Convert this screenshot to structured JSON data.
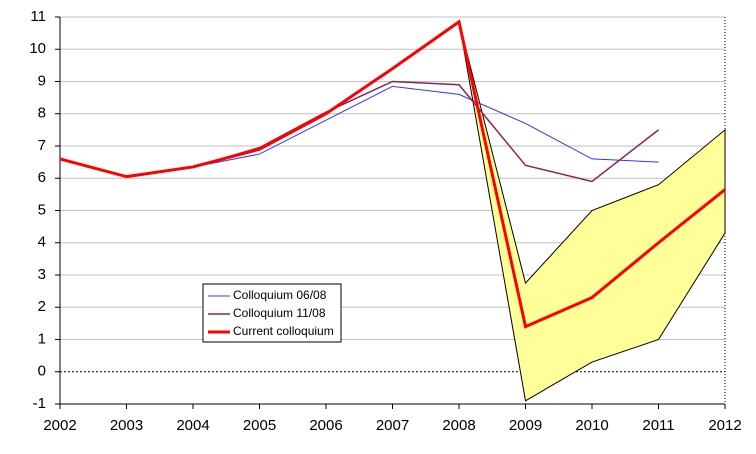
{
  "chart_data": {
    "type": "line",
    "categories": [
      "2002",
      "2003",
      "2004",
      "2005",
      "2006",
      "2007",
      "2008",
      "2009",
      "2010",
      "2011",
      "2012"
    ],
    "series": [
      {
        "name": "Colloquium 06/08",
        "color": "#3333ff",
        "width": 1,
        "values": [
          6.6,
          6.05,
          6.35,
          6.75,
          7.8,
          8.85,
          8.6,
          7.7,
          6.6,
          6.5,
          null
        ]
      },
      {
        "name": "Colloquium 11/08",
        "color": "#8b2252",
        "width": 1.5,
        "values": [
          6.6,
          6.05,
          6.35,
          6.95,
          8.05,
          9.0,
          8.9,
          6.4,
          5.9,
          7.5,
          null
        ]
      },
      {
        "name": "Current colloquium",
        "color": "#ff0000",
        "width": 3,
        "values": [
          6.6,
          6.05,
          6.35,
          6.9,
          8.0,
          9.4,
          10.85,
          1.4,
          2.3,
          4.0,
          5.65
        ]
      }
    ],
    "band": {
      "color": "#ffff99",
      "upper": [
        null,
        null,
        null,
        null,
        null,
        null,
        10.85,
        2.75,
        5.0,
        5.8,
        7.5
      ],
      "lower": [
        null,
        null,
        null,
        null,
        null,
        null,
        10.85,
        -0.9,
        0.3,
        1.0,
        4.3
      ]
    },
    "ylim": [
      -1,
      11
    ],
    "yticks": [
      -1,
      0,
      1,
      2,
      3,
      4,
      5,
      6,
      7,
      8,
      9,
      10,
      11
    ],
    "grid": true
  }
}
